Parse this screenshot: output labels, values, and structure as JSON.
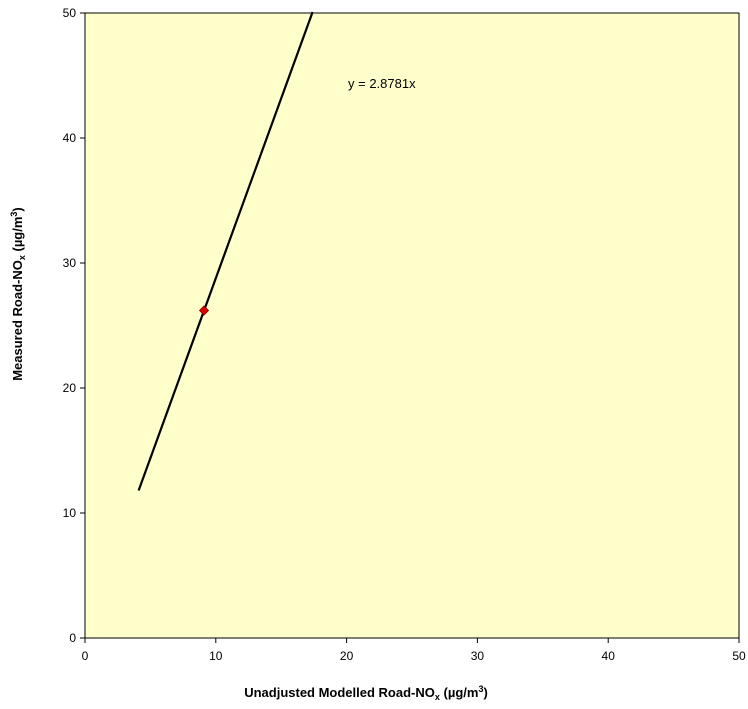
{
  "chart_data": {
    "type": "scatter",
    "title": "",
    "xlabel": {
      "main": "Unadjusted Modelled Road-NO",
      "sub": "x",
      "unit_pre": " (µg/m",
      "sup": "3",
      "unit_post": ")"
    },
    "ylabel": {
      "main": "Measured Road-NO",
      "sub": "x",
      "unit_pre": " (µg/m",
      "sup": "3",
      "unit_post": ")"
    },
    "xlim": [
      0,
      50
    ],
    "ylim": [
      0,
      50
    ],
    "x_ticks": [
      0,
      10,
      20,
      30,
      40,
      50
    ],
    "y_ticks": [
      0,
      10,
      20,
      30,
      40,
      50
    ],
    "grid": false,
    "plot_background": "#FFFFCC",
    "series": [
      {
        "points": [
          {
            "x": 9.1,
            "y": 26.2
          }
        ],
        "marker": "diamond",
        "color": "#E00000"
      }
    ],
    "trendline": {
      "slope": 2.8781,
      "intercept": 0,
      "x_range": [
        4.1,
        17.4
      ],
      "color": "#000000"
    },
    "equation_label": "y = 2.8781x"
  }
}
